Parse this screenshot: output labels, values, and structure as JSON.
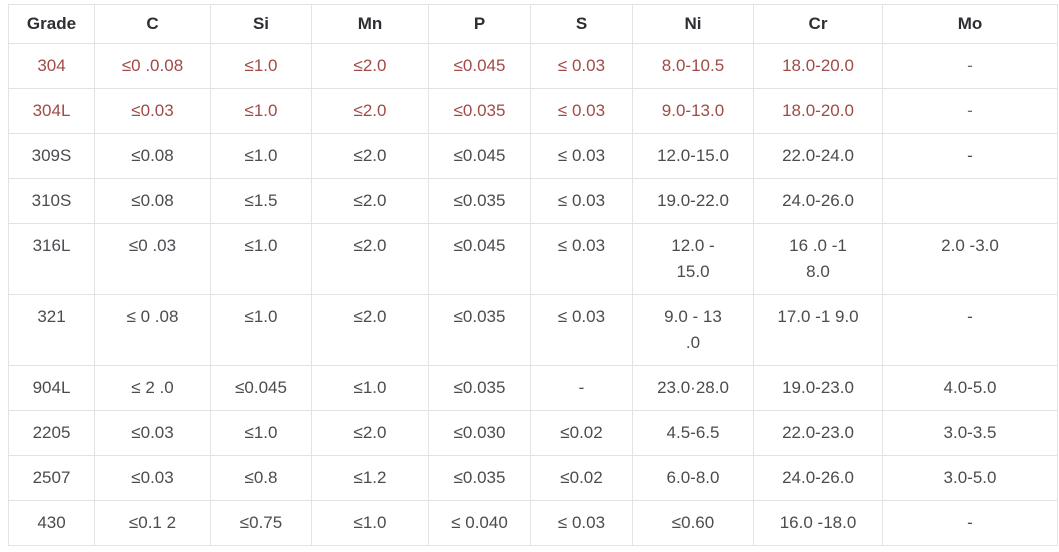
{
  "table": {
    "columns": [
      "Grade",
      "C",
      "Si",
      "Mn",
      "P",
      "S",
      "Ni",
      "Cr",
      "Mo"
    ],
    "column_keys": [
      "grade",
      "c",
      "si",
      "mn",
      "p",
      "s",
      "ni",
      "cr",
      "mo"
    ],
    "rows": [
      {
        "grade": "304",
        "highlight": true,
        "values": [
          "≤0 .0.08",
          "≤1.0",
          "≤2.0",
          "≤0.045",
          "≤ 0.03",
          "8.0-10.5",
          "18.0-20.0",
          "-"
        ]
      },
      {
        "grade": "304L",
        "highlight": true,
        "values": [
          "≤0.03",
          "≤1.0",
          "≤2.0",
          "≤0.035",
          "≤ 0.03",
          "9.0-13.0",
          "18.0-20.0",
          "-"
        ]
      },
      {
        "grade": "309S",
        "highlight": false,
        "values": [
          "≤0.08",
          "≤1.0",
          "≤2.0",
          "≤0.045",
          "≤ 0.03",
          "12.0-15.0",
          "22.0-24.0",
          "-"
        ]
      },
      {
        "grade": "310S",
        "highlight": false,
        "values": [
          "≤0.08",
          "≤1.5",
          "≤2.0",
          "≤0.035",
          "≤ 0.03",
          "19.0-22.0",
          "24.0-26.0",
          ""
        ]
      },
      {
        "grade": "316L",
        "highlight": false,
        "values": [
          "≤0 .03",
          "≤1.0",
          "≤2.0",
          "≤0.045",
          "≤ 0.03",
          "12.0 -\n15.0",
          "16 .0 -1\n8.0",
          "2.0 -3.0"
        ]
      },
      {
        "grade": "321",
        "highlight": false,
        "values": [
          "≤ 0 .08",
          "≤1.0",
          "≤2.0",
          "≤0.035",
          "≤ 0.03",
          "9.0 - 13\n.0",
          "17.0 -1 9.0",
          "-"
        ]
      },
      {
        "grade": "904L",
        "highlight": false,
        "values": [
          "≤ 2 .0",
          "≤0.045",
          "≤1.0",
          "≤0.035",
          "-",
          "23.0·28.0",
          "19.0-23.0",
          "4.0-5.0"
        ]
      },
      {
        "grade": "2205",
        "highlight": false,
        "values": [
          "≤0.03",
          "≤1.0",
          "≤2.0",
          "≤0.030",
          "≤0.02",
          "4.5-6.5",
          "22.0-23.0",
          "3.0-3.5"
        ]
      },
      {
        "grade": "2507",
        "highlight": false,
        "values": [
          "≤0.03",
          "≤0.8",
          "≤1.2",
          "≤0.035",
          "≤0.02",
          "6.0-8.0",
          "24.0-26.0",
          "3.0-5.0"
        ]
      },
      {
        "grade": "430",
        "highlight": false,
        "values": [
          "≤0.1 2",
          "≤0.75",
          "≤1.0",
          "≤ 0.040",
          "≤ 0.03",
          "≤0.60",
          "16.0 -18.0",
          "-"
        ]
      }
    ]
  },
  "colors": {
    "highlight_text": "#a04b48",
    "body_text": "#4a4c50",
    "header_text": "#2d2f33",
    "border": "#e3e3e5",
    "background": "#ffffff"
  }
}
